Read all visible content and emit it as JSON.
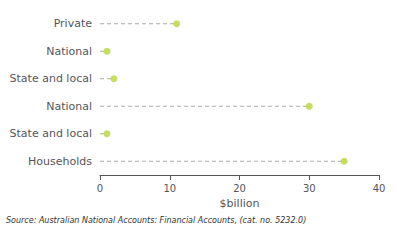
{
  "chart_data": {
    "type": "dot",
    "categories": [
      "Private",
      "National",
      "State and local",
      "National",
      "State and local",
      "Households"
    ],
    "values": [
      11,
      1,
      2,
      30,
      1,
      35
    ],
    "xlabel": "$billion",
    "xlim": [
      0,
      40
    ],
    "xticks": [
      0,
      10,
      20,
      30,
      40
    ],
    "grid": false,
    "marker": "circle",
    "line_style": "dashed",
    "annotations": [
      "Source: Australian National Accounts: Financial Accounts, (cat. no. 5232.0)"
    ]
  }
}
